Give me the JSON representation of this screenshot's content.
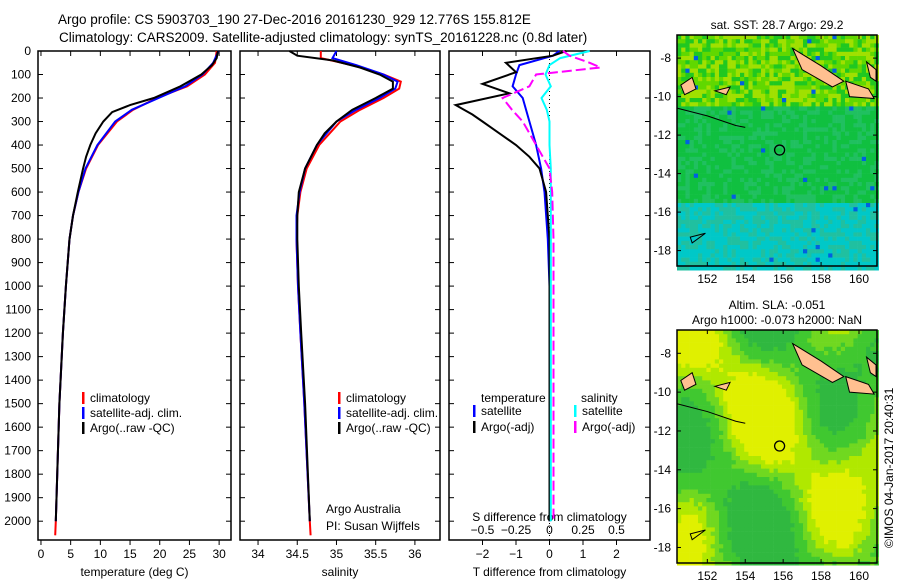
{
  "title": {
    "line1": "Argo profile: CS 5903703_190 27-Dec-2016 20161230_929 12.776S 155.812E",
    "line2": "Climatology: CARS2009. Satellite-adjusted climatology: synTS_20161228.nc (0.8d later)"
  },
  "colors": {
    "climatology": "#ff0000",
    "satellite": "#0000ff",
    "argo": "#000000",
    "sal_satellite": "#00ffff",
    "sal_argo": "#ff00ff"
  },
  "chart_data": [
    {
      "type": "line",
      "xlabel": "temperature (deg C)",
      "ylabel": "",
      "xlim": [
        -0.5,
        32
      ],
      "ylim": [
        2080,
        0
      ],
      "xticks": [
        0,
        5,
        10,
        15,
        20,
        25,
        30
      ],
      "yticks": [
        0,
        100,
        200,
        300,
        400,
        500,
        600,
        700,
        800,
        900,
        1000,
        1100,
        1200,
        1300,
        1400,
        1500,
        1600,
        1700,
        1800,
        1900,
        2000
      ],
      "legend": [
        "climatology",
        "satellite-adj. clim.",
        "Argo(..raw -QC)"
      ],
      "legend_placement": "lower-center",
      "series": [
        {
          "name": "climatology",
          "depth": [
            0,
            50,
            100,
            150,
            200,
            250,
            300,
            400,
            500,
            600,
            700,
            800,
            1000,
            1200,
            1500,
            2000,
            2060
          ],
          "values": [
            29.6,
            29.3,
            27.6,
            24.6,
            19.5,
            15.5,
            12.8,
            9.6,
            7.6,
            6.3,
            5.4,
            4.8,
            4.2,
            3.7,
            3.1,
            2.5,
            2.4
          ]
        },
        {
          "name": "satellite-adj. clim.",
          "depth": [
            0,
            50,
            100,
            150,
            200,
            250,
            300,
            400,
            500,
            600,
            700,
            800,
            1000,
            1200,
            1500,
            2000
          ],
          "values": [
            29.9,
            29.0,
            27.2,
            24.3,
            19.8,
            15.3,
            12.5,
            9.5,
            7.5,
            6.3,
            5.4,
            4.8,
            4.2,
            3.7,
            3.1,
            2.5
          ]
        },
        {
          "name": "Argo(..raw -QC)",
          "depth": [
            0,
            30,
            60,
            100,
            150,
            200,
            230,
            260,
            300,
            350,
            400,
            450,
            500,
            600,
            700,
            800,
            1000,
            1200,
            1500,
            2000
          ],
          "values": [
            29.8,
            29.6,
            28.8,
            27.0,
            23.5,
            19.0,
            15.0,
            12.0,
            10.5,
            9.2,
            8.3,
            7.6,
            7.1,
            6.2,
            5.4,
            4.8,
            4.2,
            3.7,
            3.1,
            2.5
          ]
        }
      ]
    },
    {
      "type": "line",
      "xlabel": "salinity",
      "xlim": [
        33.77,
        36.32
      ],
      "ylim": [
        2080,
        0
      ],
      "xticks": [
        34,
        34.5,
        35,
        35.5,
        36
      ],
      "legend": [
        "climatology",
        "satellite-adj. clim.",
        "Argo(..raw -QC)"
      ],
      "legend_placement": "lower-right",
      "annotation": {
        "line1": "Argo Australia",
        "line2": "PI: Susan Wijffels"
      },
      "series": [
        {
          "name": "climatology",
          "depth": [
            0,
            30,
            60,
            100,
            130,
            160,
            200,
            250,
            300,
            400,
            500,
            600,
            700,
            800,
            1000,
            1200,
            1500,
            2000,
            2060
          ],
          "values": [
            34.8,
            34.8,
            35.2,
            35.6,
            35.82,
            35.8,
            35.6,
            35.3,
            35.05,
            34.78,
            34.62,
            34.54,
            34.5,
            34.49,
            34.51,
            34.54,
            34.59,
            34.66,
            34.67
          ]
        },
        {
          "name": "satellite-adj. clim.",
          "depth": [
            0,
            30,
            60,
            100,
            130,
            160,
            200,
            250,
            300,
            400,
            500,
            600,
            700,
            800,
            1000,
            1200,
            1500,
            2000
          ],
          "values": [
            35.0,
            34.95,
            35.25,
            35.6,
            35.78,
            35.75,
            35.55,
            35.25,
            35.0,
            34.75,
            34.6,
            34.53,
            34.49,
            34.49,
            34.51,
            34.54,
            34.59,
            34.66
          ]
        },
        {
          "name": "Argo(..raw -QC)",
          "depth": [
            0,
            20,
            40,
            70,
            100,
            130,
            160,
            200,
            250,
            300,
            350,
            400,
            500,
            600,
            700,
            800,
            1000,
            1200,
            1500,
            2000
          ],
          "values": [
            34.4,
            34.5,
            34.95,
            35.3,
            35.55,
            35.72,
            35.72,
            35.5,
            35.2,
            35.0,
            34.85,
            34.75,
            34.6,
            34.52,
            34.5,
            34.5,
            34.52,
            34.55,
            34.6,
            34.66
          ]
        }
      ]
    },
    {
      "type": "line",
      "xlabel": "T difference from climatology",
      "x2label": "S difference from climatology",
      "xlim": [
        -3,
        3
      ],
      "x2lim": [
        -0.75,
        0.75
      ],
      "ylim": [
        2080,
        0
      ],
      "xticks": [
        -2,
        -1,
        0,
        1,
        2
      ],
      "x2ticks": [
        -0.5,
        -0.25,
        0,
        0.25,
        0.5
      ],
      "legend_headers": [
        "temperature",
        "salinity"
      ],
      "legend": [
        "satellite",
        "Argo(-adj)",
        "satellite",
        "Argo(-adj)"
      ],
      "legend_placement": "lower-center",
      "series": [
        {
          "name": "temperature satellite",
          "axis": "T",
          "depth": [
            0,
            20,
            60,
            100,
            150,
            200,
            300,
            400,
            500,
            600,
            800,
            1000,
            2000
          ],
          "values": [
            0.3,
            0.1,
            -0.9,
            -1.0,
            -1.1,
            -0.8,
            -0.6,
            -0.4,
            -0.25,
            -0.15,
            -0.05,
            0,
            0
          ]
        },
        {
          "name": "temperature Argo(-adj)",
          "axis": "T",
          "depth": [
            0,
            20,
            50,
            90,
            140,
            180,
            230,
            270,
            300,
            350,
            400,
            450,
            500,
            600,
            800,
            1000,
            2000
          ],
          "values": [
            0.5,
            0.1,
            -1.3,
            -1.0,
            -2.0,
            -1.2,
            -2.8,
            -2.3,
            -2.0,
            -1.5,
            -1.0,
            -0.6,
            -0.3,
            -0.1,
            0,
            0,
            0
          ]
        },
        {
          "name": "salinity satellite",
          "axis": "S",
          "depth": [
            0,
            30,
            60,
            100,
            150,
            200,
            250,
            300,
            400,
            500,
            600,
            800,
            1000,
            1500,
            2000
          ],
          "values": [
            0.3,
            0.08,
            0.0,
            -0.03,
            0.01,
            -0.06,
            -0.02,
            0.0,
            0.0,
            0.01,
            0.01,
            0.01,
            0.01,
            0.01,
            0.01
          ]
        },
        {
          "name": "salinity Argo(-adj)",
          "axis": "S",
          "depth": [
            0,
            20,
            50,
            70,
            100,
            150,
            200,
            250,
            300,
            400,
            500,
            600,
            800,
            1000,
            1500,
            2000
          ],
          "values": [
            0.1,
            0.15,
            0.3,
            0.38,
            -0.1,
            -0.15,
            -0.35,
            -0.28,
            -0.2,
            -0.1,
            0,
            0.02,
            0.03,
            0.03,
            0.03,
            0.03
          ]
        }
      ]
    }
  ],
  "maps": {
    "sst": {
      "title": "sat. SST: 28.7 Argo: 29.2",
      "lon_ticks": [
        "152",
        "154",
        "156",
        "158",
        "160"
      ],
      "lat_ticks": [
        "-8",
        "-10",
        "-12",
        "-14",
        "-16",
        "-18"
      ]
    },
    "sla": {
      "title1": "Altim. SLA: -0.051",
      "title2": "Argo h1000: -0.073 h2000: NaN",
      "lon_ticks": [
        "152",
        "154",
        "156",
        "158",
        "160"
      ],
      "lat_ticks": [
        "-8",
        "-10",
        "-12",
        "-14",
        "-16",
        "-18"
      ]
    },
    "profile_location": {
      "lon": 155.812,
      "lat": -12.776
    }
  },
  "footer": "©IMOS 04-Jan-2017 20:40:31"
}
